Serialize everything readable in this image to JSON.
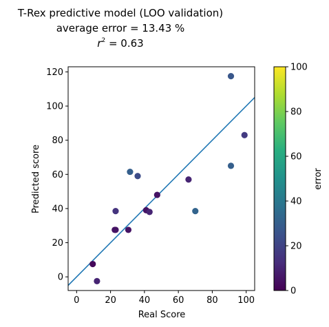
{
  "chart_data": {
    "type": "scatter",
    "title_lines": [
      "T-Rex predictive model (LOO validation)",
      "average error = 13.43 %"
    ],
    "r2": {
      "symbol": "r",
      "sup": "2",
      "rest": " = 0.63"
    },
    "xlabel": "Real Score",
    "ylabel": "Predicted score",
    "xlim": [
      -5,
      105
    ],
    "ylim": [
      -8,
      123
    ],
    "xticks": [
      0,
      20,
      40,
      60,
      80,
      100
    ],
    "yticks": [
      0,
      20,
      40,
      60,
      80,
      100,
      120
    ],
    "fit_line": {
      "slope": 1.0,
      "intercept": 0,
      "color": "#1f77b4"
    },
    "points": [
      {
        "x": 9.5,
        "y": 7.5,
        "error": 2
      },
      {
        "x": 12,
        "y": -2.5,
        "error": 10
      },
      {
        "x": 22.5,
        "y": 27.5,
        "error": 5
      },
      {
        "x": 23,
        "y": 27.5,
        "error": 5
      },
      {
        "x": 23,
        "y": 38.5,
        "error": 15
      },
      {
        "x": 30.5,
        "y": 27.5,
        "error": 5
      },
      {
        "x": 31.5,
        "y": 61.5,
        "error": 30
      },
      {
        "x": 36,
        "y": 59,
        "error": 23
      },
      {
        "x": 41,
        "y": 39,
        "error": 5
      },
      {
        "x": 43,
        "y": 38,
        "error": 10
      },
      {
        "x": 47.5,
        "y": 48,
        "error": 5
      },
      {
        "x": 66,
        "y": 57,
        "error": 10
      },
      {
        "x": 70,
        "y": 38.5,
        "error": 32
      },
      {
        "x": 91,
        "y": 117.5,
        "error": 27
      },
      {
        "x": 91,
        "y": 65,
        "error": 30
      },
      {
        "x": 99,
        "y": 83,
        "error": 17
      }
    ],
    "colorbar": {
      "label": "error",
      "range": [
        0,
        100
      ],
      "ticks": [
        0,
        20,
        40,
        60,
        80,
        100
      ],
      "colormap": "viridis"
    },
    "grid": false
  }
}
